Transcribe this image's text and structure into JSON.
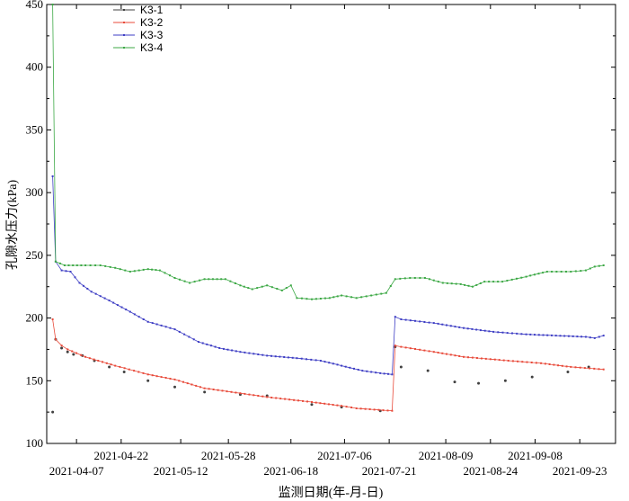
{
  "chart_data": {
    "type": "line",
    "xlabel": "监测日期(年-月-日)",
    "ylabel": "孔隙水压力(kPa)",
    "ylim": [
      100,
      450
    ],
    "yticks": [
      100,
      150,
      200,
      250,
      300,
      350,
      400,
      450
    ],
    "xlim": [
      "2021-03-28",
      "2021-10-05"
    ],
    "xticks_upper": [
      "2021-04-22",
      "2021-05-28",
      "2021-07-06",
      "2021-08-09",
      "2021-09-08"
    ],
    "xticks_lower": [
      "2021-04-07",
      "2021-05-12",
      "2021-06-18",
      "2021-07-21",
      "2021-08-24",
      "2021-09-23"
    ],
    "grid": false,
    "legend_position": "top-left",
    "series": [
      {
        "name": "K3-1",
        "color": "#404040",
        "style": "markers",
        "points": [
          [
            "2021-03-30",
            125
          ],
          [
            "2021-03-31",
            183
          ],
          [
            "2021-04-02",
            176
          ],
          [
            "2021-04-04",
            173
          ],
          [
            "2021-04-06",
            171
          ],
          [
            "2021-04-09",
            170
          ],
          [
            "2021-04-13",
            166
          ],
          [
            "2021-04-18",
            161
          ],
          [
            "2021-04-23",
            157
          ],
          [
            "2021-05-01",
            150
          ],
          [
            "2021-05-10",
            145
          ],
          [
            "2021-05-20",
            141
          ],
          [
            "2021-06-01",
            139
          ],
          [
            "2021-06-10",
            138
          ],
          [
            "2021-06-25",
            131
          ],
          [
            "2021-07-05",
            129
          ],
          [
            "2021-07-18",
            126
          ],
          [
            "2021-07-23",
            177
          ],
          [
            "2021-07-25",
            161
          ],
          [
            "2021-08-03",
            158
          ],
          [
            "2021-08-12",
            149
          ],
          [
            "2021-08-20",
            148
          ],
          [
            "2021-08-29",
            150
          ],
          [
            "2021-09-07",
            153
          ],
          [
            "2021-09-19",
            157
          ],
          [
            "2021-09-26",
            161
          ]
        ]
      },
      {
        "name": "K3-2",
        "color": "#e84a3a",
        "style": "line",
        "points": [
          [
            "2021-03-30",
            199
          ],
          [
            "2021-03-31",
            183
          ],
          [
            "2021-04-02",
            178
          ],
          [
            "2021-04-04",
            175
          ],
          [
            "2021-04-10",
            169
          ],
          [
            "2021-04-20",
            162
          ],
          [
            "2021-05-01",
            155
          ],
          [
            "2021-05-10",
            151
          ],
          [
            "2021-05-20",
            144
          ],
          [
            "2021-06-01",
            140
          ],
          [
            "2021-06-10",
            137
          ],
          [
            "2021-06-25",
            133
          ],
          [
            "2021-07-05",
            130
          ],
          [
            "2021-07-10",
            128
          ],
          [
            "2021-07-22",
            126
          ],
          [
            "2021-07-23",
            178
          ],
          [
            "2021-07-25",
            177
          ],
          [
            "2021-08-05",
            173
          ],
          [
            "2021-08-15",
            169
          ],
          [
            "2021-08-30",
            166
          ],
          [
            "2021-09-10",
            164
          ],
          [
            "2021-09-20",
            161
          ],
          [
            "2021-10-01",
            159
          ]
        ]
      },
      {
        "name": "K3-3",
        "color": "#3e3ec4",
        "style": "line",
        "points": [
          [
            "2021-03-30",
            313
          ],
          [
            "2021-03-31",
            245
          ],
          [
            "2021-04-02",
            238
          ],
          [
            "2021-04-05",
            237
          ],
          [
            "2021-04-08",
            228
          ],
          [
            "2021-04-12",
            221
          ],
          [
            "2021-04-18",
            214
          ],
          [
            "2021-04-25",
            205
          ],
          [
            "2021-05-01",
            197
          ],
          [
            "2021-05-10",
            191
          ],
          [
            "2021-05-18",
            181
          ],
          [
            "2021-05-25",
            176
          ],
          [
            "2021-06-01",
            173
          ],
          [
            "2021-06-10",
            170
          ],
          [
            "2021-06-20",
            168
          ],
          [
            "2021-06-28",
            166
          ],
          [
            "2021-07-05",
            162
          ],
          [
            "2021-07-12",
            158
          ],
          [
            "2021-07-18",
            156
          ],
          [
            "2021-07-22",
            155
          ],
          [
            "2021-07-23",
            201
          ],
          [
            "2021-07-25",
            199
          ],
          [
            "2021-08-05",
            196
          ],
          [
            "2021-08-15",
            192
          ],
          [
            "2021-08-25",
            189
          ],
          [
            "2021-09-05",
            187
          ],
          [
            "2021-09-15",
            186
          ],
          [
            "2021-09-25",
            185
          ],
          [
            "2021-09-28",
            184
          ],
          [
            "2021-10-01",
            186
          ]
        ]
      },
      {
        "name": "K3-4",
        "color": "#3ca845",
        "style": "line",
        "points": [
          [
            "2021-03-30",
            450
          ],
          [
            "2021-03-31",
            245
          ],
          [
            "2021-04-03",
            242
          ],
          [
            "2021-04-10",
            242
          ],
          [
            "2021-04-15",
            242
          ],
          [
            "2021-04-20",
            240
          ],
          [
            "2021-04-25",
            237
          ],
          [
            "2021-05-01",
            239
          ],
          [
            "2021-05-05",
            238
          ],
          [
            "2021-05-10",
            232
          ],
          [
            "2021-05-15",
            228
          ],
          [
            "2021-05-20",
            231
          ],
          [
            "2021-05-27",
            231
          ],
          [
            "2021-06-01",
            226
          ],
          [
            "2021-06-05",
            223
          ],
          [
            "2021-06-10",
            226
          ],
          [
            "2021-06-15",
            222
          ],
          [
            "2021-06-18",
            226
          ],
          [
            "2021-06-20",
            216
          ],
          [
            "2021-06-25",
            215
          ],
          [
            "2021-07-01",
            216
          ],
          [
            "2021-07-05",
            218
          ],
          [
            "2021-07-10",
            216
          ],
          [
            "2021-07-15",
            218
          ],
          [
            "2021-07-20",
            220
          ],
          [
            "2021-07-23",
            231
          ],
          [
            "2021-07-28",
            232
          ],
          [
            "2021-08-02",
            232
          ],
          [
            "2021-08-08",
            228
          ],
          [
            "2021-08-14",
            227
          ],
          [
            "2021-08-18",
            225
          ],
          [
            "2021-08-22",
            229
          ],
          [
            "2021-08-28",
            229
          ],
          [
            "2021-09-05",
            233
          ],
          [
            "2021-09-12",
            237
          ],
          [
            "2021-09-20",
            237
          ],
          [
            "2021-09-25",
            238
          ],
          [
            "2021-09-28",
            241
          ],
          [
            "2021-10-01",
            242
          ]
        ]
      }
    ]
  }
}
